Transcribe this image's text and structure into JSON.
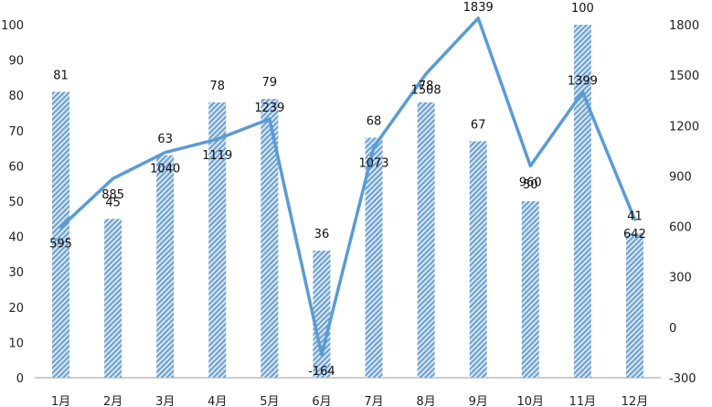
{
  "chart_data": {
    "type": "bar",
    "categories": [
      "1月",
      "2月",
      "3月",
      "4月",
      "5月",
      "6月",
      "7月",
      "8月",
      "9月",
      "10月",
      "11月",
      "12月"
    ],
    "series": [
      {
        "type": "bar",
        "axis": "left",
        "values": [
          81,
          45,
          63,
          78,
          79,
          36,
          68,
          78,
          67,
          50,
          100,
          41
        ]
      },
      {
        "type": "line",
        "axis": "right",
        "values": [
          595,
          885,
          1040,
          1119,
          1239,
          -164,
          1073,
          1508,
          1839,
          960,
          1399,
          642
        ]
      }
    ],
    "y_left": {
      "min": 0,
      "max": 100,
      "ticks": [
        0,
        10,
        20,
        30,
        40,
        50,
        60,
        70,
        80,
        90,
        100
      ]
    },
    "y_right": {
      "min": -300,
      "max": 1800,
      "ticks": [
        -300,
        0,
        300,
        600,
        900,
        1200,
        1500,
        1800
      ]
    },
    "title": "",
    "xlabel": "",
    "ylabel": "",
    "grid": false,
    "legend": "none",
    "colors": {
      "bar": "#6a9fd0",
      "bar_light": "#d8e6f3",
      "line": "#5b9bd5",
      "axis": "#999999"
    }
  }
}
